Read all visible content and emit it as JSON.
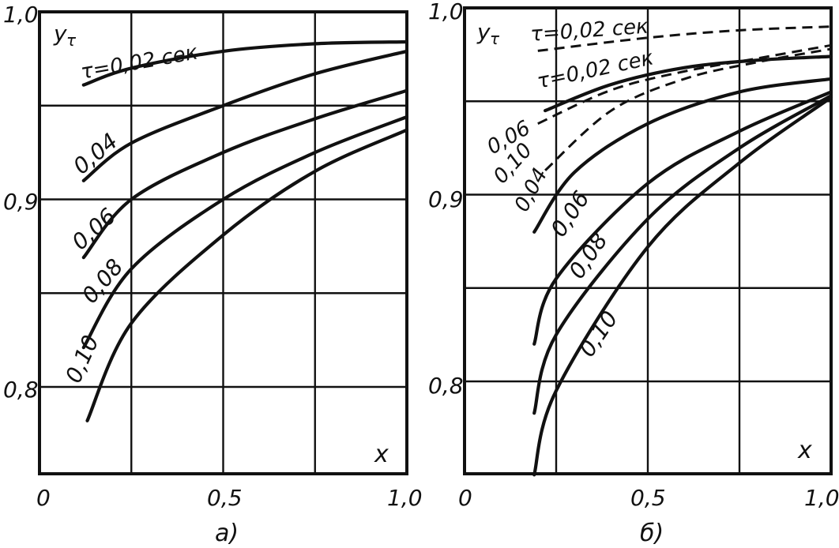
{
  "chart_data": [
    {
      "panel": "a)",
      "type": "line",
      "ylabel": "y_τ",
      "xlabel": "x",
      "xlim": [
        0,
        1.0
      ],
      "ylim": [
        0.75,
        1.0
      ],
      "x_ticks": [
        "0",
        "0,5",
        "1,0"
      ],
      "y_ticks": [
        "0,8",
        "0,9",
        "1,0"
      ],
      "grid": true,
      "series": [
        {
          "name": "τ=0,02 сек",
          "style": "solid",
          "points": [
            [
              0.12,
              0.961
            ],
            [
              0.25,
              0.97
            ],
            [
              0.5,
              0.979
            ],
            [
              0.75,
              0.983
            ],
            [
              1.0,
              0.984
            ]
          ]
        },
        {
          "name": "0,04",
          "style": "solid",
          "points": [
            [
              0.12,
              0.91
            ],
            [
              0.25,
              0.93
            ],
            [
              0.5,
              0.95
            ],
            [
              0.75,
              0.967
            ],
            [
              1.0,
              0.979
            ]
          ]
        },
        {
          "name": "0,06",
          "style": "solid",
          "points": [
            [
              0.12,
              0.869
            ],
            [
              0.25,
              0.9
            ],
            [
              0.5,
              0.925
            ],
            [
              0.75,
              0.943
            ],
            [
              1.0,
              0.958
            ]
          ]
        },
        {
          "name": "0,08",
          "style": "solid",
          "points": [
            [
              0.12,
              0.821
            ],
            [
              0.25,
              0.863
            ],
            [
              0.5,
              0.9
            ],
            [
              0.75,
              0.925
            ],
            [
              1.0,
              0.944
            ]
          ]
        },
        {
          "name": "0,10",
          "style": "solid",
          "points": [
            [
              0.13,
              0.782
            ],
            [
              0.25,
              0.834
            ],
            [
              0.5,
              0.881
            ],
            [
              0.75,
              0.915
            ],
            [
              1.0,
              0.937
            ]
          ]
        }
      ]
    },
    {
      "panel": "б)",
      "type": "line",
      "ylabel": "y_τ",
      "xlabel": "x",
      "xlim": [
        0,
        1.0
      ],
      "ylim": [
        0.75,
        1.0
      ],
      "x_ticks": [
        "0",
        "0,5",
        "1,0"
      ],
      "y_ticks": [
        "0,8",
        "0,9",
        "1,0"
      ],
      "grid": true,
      "series": [
        {
          "name": "τ=0,02 сек",
          "style": "dashed",
          "points": [
            [
              0.2,
              0.977
            ],
            [
              0.5,
              0.984
            ],
            [
              0.75,
              0.988
            ],
            [
              1.0,
              0.99
            ]
          ]
        },
        {
          "name": "τ=0,02 сек",
          "style": "solid",
          "points": [
            [
              0.22,
              0.945
            ],
            [
              0.4,
              0.959
            ],
            [
              0.6,
              0.968
            ],
            [
              0.8,
              0.972
            ],
            [
              1.0,
              0.974
            ]
          ]
        },
        {
          "name": "0,06",
          "style": "dashed",
          "points": [
            [
              0.2,
              0.938
            ],
            [
              0.4,
              0.956
            ],
            [
              0.6,
              0.966
            ],
            [
              0.8,
              0.973
            ],
            [
              1.0,
              0.98
            ]
          ]
        },
        {
          "name": "0,10",
          "style": "dashed",
          "points": [
            [
              0.22,
              0.913
            ],
            [
              0.4,
              0.945
            ],
            [
              0.6,
              0.962
            ],
            [
              0.8,
              0.971
            ],
            [
              1.0,
              0.978
            ]
          ]
        },
        {
          "name": "0,04",
          "style": "solid",
          "points": [
            [
              0.19,
              0.88
            ],
            [
              0.3,
              0.912
            ],
            [
              0.5,
              0.938
            ],
            [
              0.75,
              0.955
            ],
            [
              1.0,
              0.962
            ]
          ]
        },
        {
          "name": "0,06",
          "style": "solid",
          "points": [
            [
              0.19,
              0.82
            ],
            [
              0.25,
              0.855
            ],
            [
              0.5,
              0.906
            ],
            [
              0.75,
              0.934
            ],
            [
              1.0,
              0.955
            ]
          ]
        },
        {
          "name": "0,08",
          "style": "solid",
          "points": [
            [
              0.19,
              0.783
            ],
            [
              0.25,
              0.825
            ],
            [
              0.5,
              0.887
            ],
            [
              0.75,
              0.925
            ],
            [
              1.0,
              0.953
            ]
          ]
        },
        {
          "name": "0,10",
          "style": "solid",
          "points": [
            [
              0.19,
              0.75
            ],
            [
              0.25,
              0.795
            ],
            [
              0.5,
              0.872
            ],
            [
              0.75,
              0.917
            ],
            [
              1.0,
              0.952
            ]
          ]
        }
      ]
    }
  ],
  "captions": {
    "left": "а)",
    "right": "б)"
  },
  "axis_text": {
    "y_symbol": "y",
    "y_sub": "τ",
    "x_symbol": "x"
  },
  "labels_a": {
    "tau": "τ=0,02 сек",
    "c04": "0,04",
    "c06": "0,06",
    "c08": "0,08",
    "c10": "0,10"
  },
  "labels_b": {
    "tau_dash": "τ=0,02 сек",
    "tau_solid": "τ=0,02 сек",
    "d06": "0,06",
    "d10": "0,10",
    "c04": "0,04",
    "c06": "0,06",
    "c08": "0,08",
    "c10": "0,10"
  }
}
